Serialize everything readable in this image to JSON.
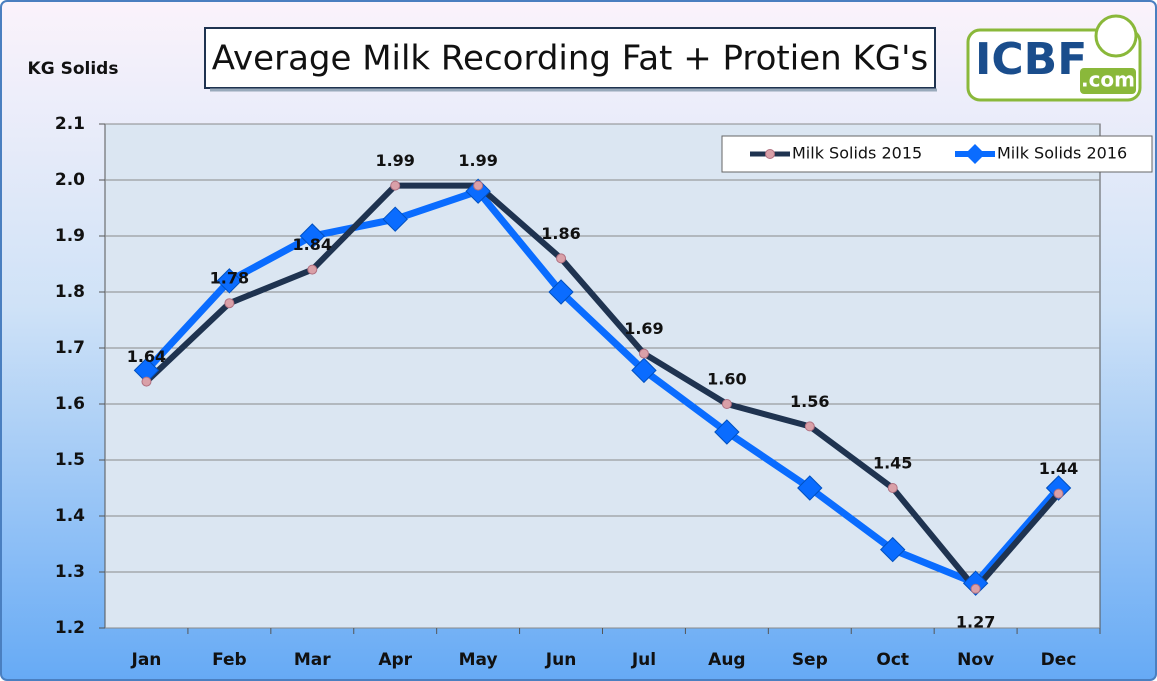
{
  "chart_data": {
    "type": "line",
    "title": "Average Milk Recording Fat + Protien KG's",
    "y_label": "KG Solids",
    "logo": {
      "main": "ICBF",
      "suffix": ".com"
    },
    "categories": [
      "Jan",
      "Feb",
      "Mar",
      "Apr",
      "May",
      "Jun",
      "Jul",
      "Aug",
      "Sep",
      "Oct",
      "Nov",
      "Dec"
    ],
    "series": [
      {
        "name": "Milk Solids 2015",
        "color": "#1f3350",
        "values": [
          1.64,
          1.78,
          1.84,
          1.99,
          1.99,
          1.86,
          1.69,
          1.6,
          1.56,
          1.45,
          1.27,
          1.44
        ],
        "value_labels": [
          "1.64",
          "1.78",
          "1.84",
          "1.99",
          "1.99",
          "1.86",
          "1.69",
          "1.60",
          "1.56",
          "1.45",
          "1.27",
          "1.44"
        ]
      },
      {
        "name": "Milk Solids 2016",
        "color": "#0a6cff",
        "values": [
          1.66,
          1.82,
          1.9,
          1.93,
          1.98,
          1.8,
          1.66,
          1.55,
          1.45,
          1.34,
          1.28,
          1.45
        ]
      }
    ],
    "ylim": [
      1.2,
      2.1
    ],
    "yticks": [
      1.2,
      1.3,
      1.4,
      1.5,
      1.6,
      1.7,
      1.8,
      1.9,
      {
        "value": 2,
        "label": "2.0"
      },
      2.1
    ],
    "grid": true,
    "legend": "top-right"
  }
}
